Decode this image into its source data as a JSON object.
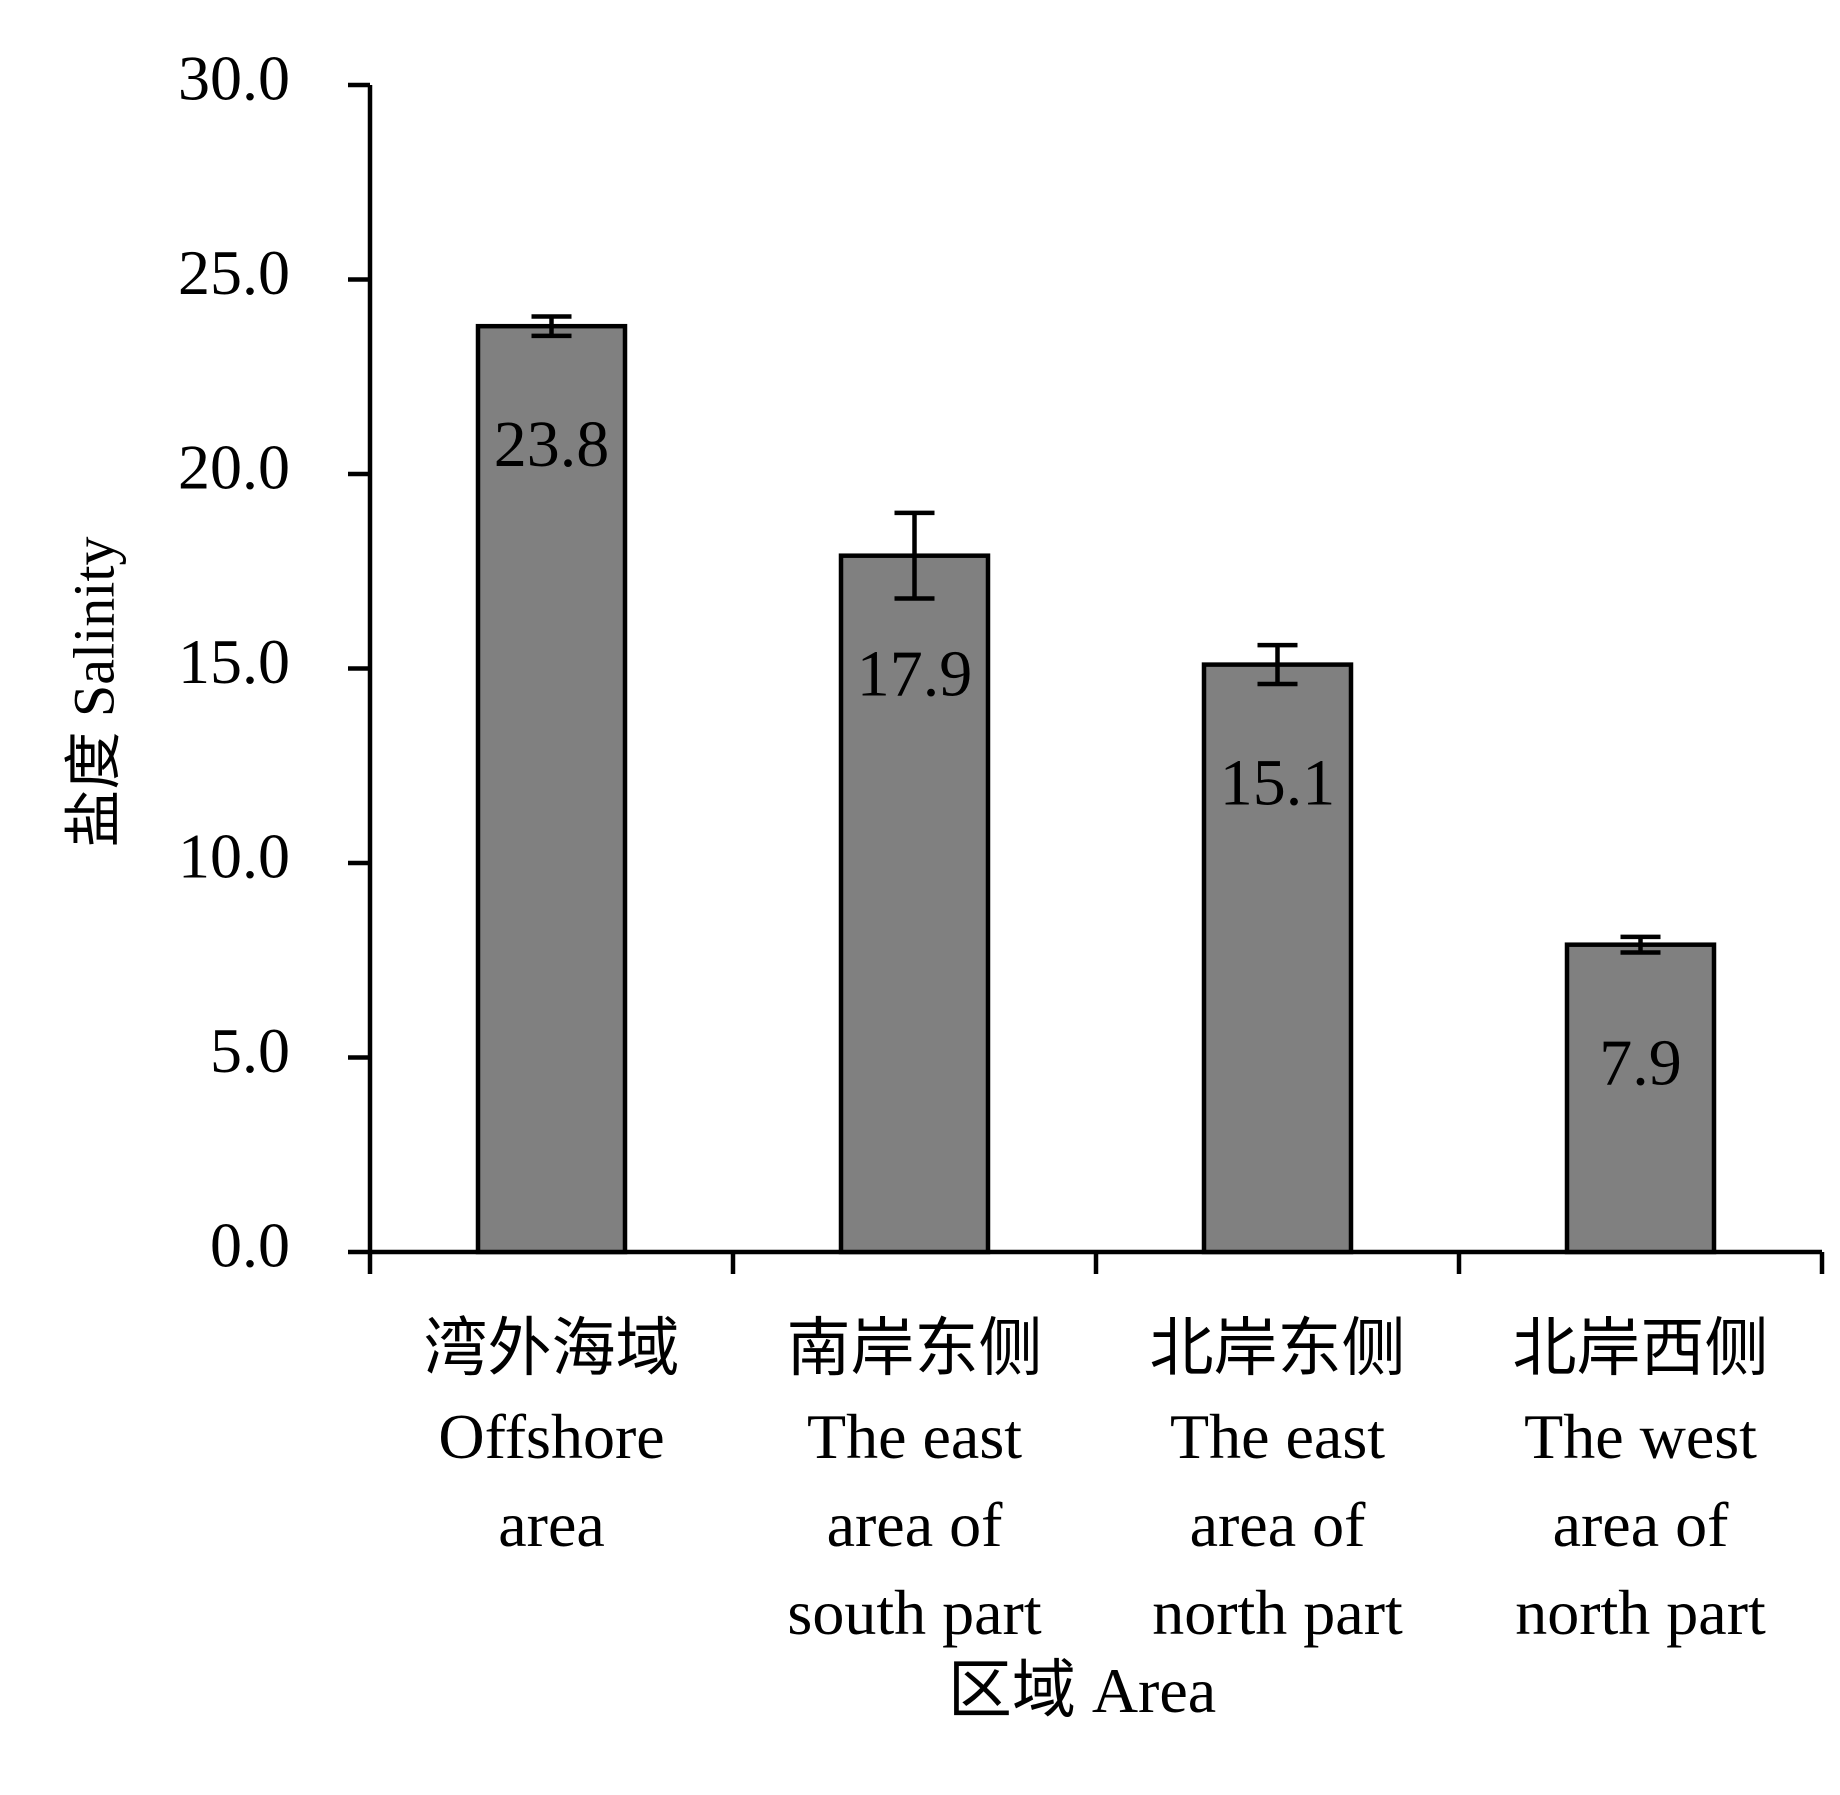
{
  "chart_data": {
    "type": "bar",
    "ylabel": "盐度 Salinity",
    "xlabel": "区域 Area",
    "ylim": [
      0,
      30
    ],
    "yticks": [
      "0.0",
      "5.0",
      "10.0",
      "15.0",
      "20.0",
      "25.0",
      "30.0"
    ],
    "categories": [
      [
        "湾外海域",
        "Offshore",
        "area"
      ],
      [
        "南岸东侧",
        "The east",
        "area of",
        "south part"
      ],
      [
        "北岸东侧",
        "The east",
        "area of",
        "north part"
      ],
      [
        "北岸西侧",
        "The west",
        "area of",
        "north part"
      ]
    ],
    "values": [
      23.8,
      17.9,
      15.1,
      7.9
    ],
    "data_labels": [
      "23.8",
      "17.9",
      "15.1",
      "7.9"
    ],
    "error_bars": [
      0.25,
      1.1,
      0.5,
      0.2
    ],
    "bar_color": "#808080",
    "bar_edge_color": "#000000",
    "grid": false,
    "legend": "none"
  }
}
